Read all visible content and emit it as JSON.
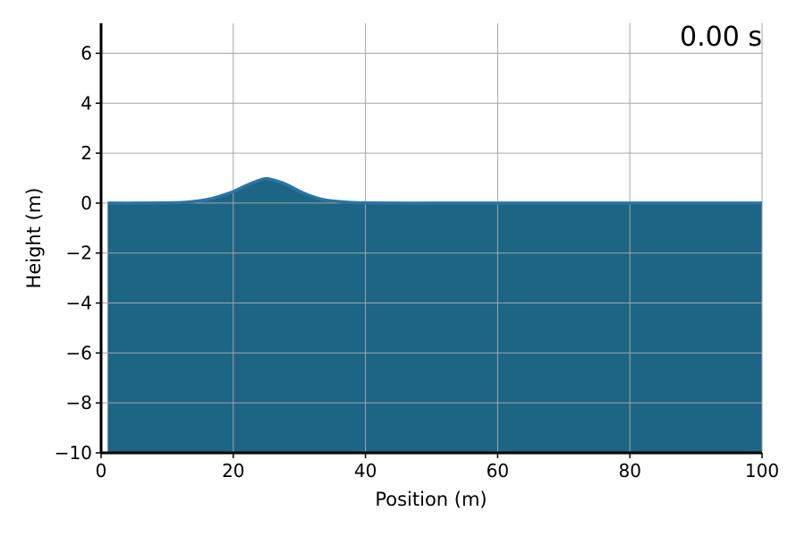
{
  "chart_data": {
    "type": "area",
    "xlabel": "Position (m)",
    "ylabel": "Height (m)",
    "time_label": "0.00 s",
    "xlim": [
      0,
      100
    ],
    "ylim": [
      -10,
      7.2
    ],
    "x_ticks": [
      0,
      20,
      40,
      60,
      80,
      100
    ],
    "x_tick_labels": [
      "0",
      "20",
      "40",
      "60",
      "80",
      "100"
    ],
    "y_ticks": [
      6,
      4,
      2,
      0,
      -2,
      -4,
      -6,
      -8,
      -10
    ],
    "y_tick_labels": [
      "6",
      "4",
      "2",
      "0",
      "−2",
      "−4",
      "−6",
      "−8",
      "−10"
    ],
    "grid": true,
    "fill_baseline": -10,
    "fill_x_start": 1,
    "series": [
      {
        "x": [
          1,
          5,
          10,
          13,
          16,
          18,
          20,
          22,
          24,
          25,
          26,
          28,
          30,
          32,
          34,
          37,
          40,
          45,
          50,
          60,
          70,
          80,
          90,
          100
        ],
        "y": [
          0,
          0,
          0.01,
          0.04,
          0.14,
          0.28,
          0.46,
          0.71,
          0.92,
          0.98,
          0.93,
          0.75,
          0.48,
          0.26,
          0.12,
          0.04,
          0.01,
          0,
          0,
          0,
          0,
          0,
          0,
          0
        ]
      }
    ],
    "colors": {
      "fill": "#1c6584",
      "line": "#2a74a8",
      "grid": "#a6a6a6",
      "axis": "#000000"
    }
  }
}
